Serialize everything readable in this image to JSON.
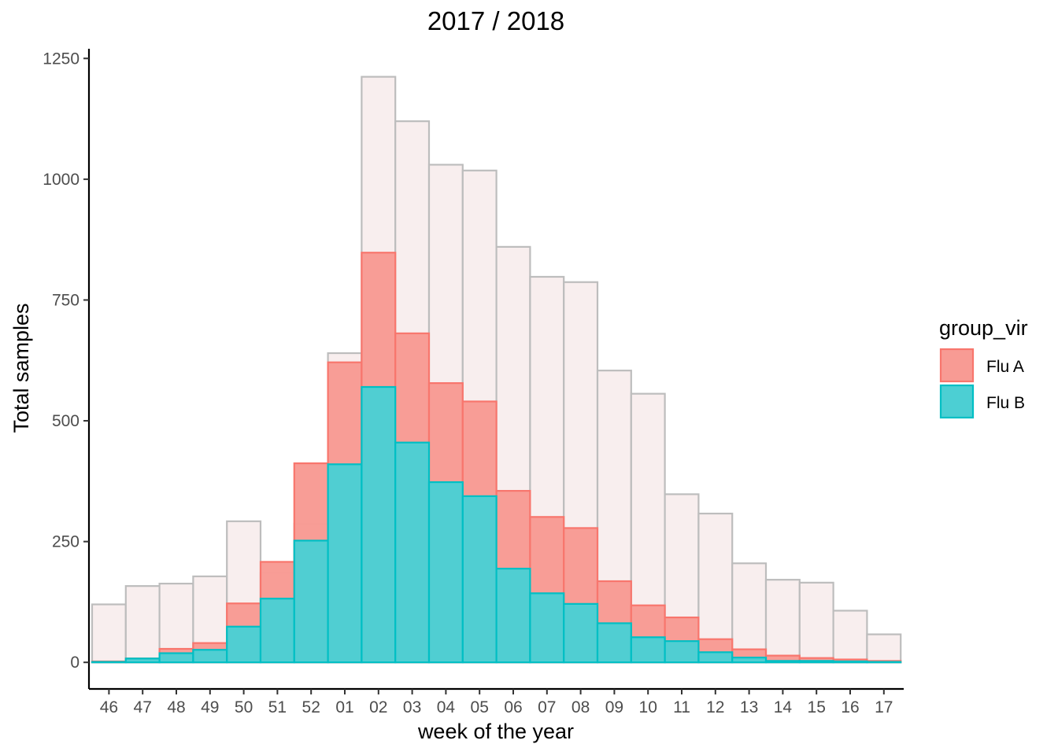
{
  "chart_data": {
    "type": "bar",
    "title": "2017 / 2018",
    "xlabel": "week of the year",
    "ylabel": "Total samples",
    "categories": [
      "46",
      "47",
      "48",
      "49",
      "50",
      "51",
      "52",
      "01",
      "02",
      "03",
      "04",
      "05",
      "06",
      "07",
      "08",
      "09",
      "10",
      "11",
      "12",
      "13",
      "14",
      "15",
      "16",
      "17"
    ],
    "ylim": [
      -55,
      1270
    ],
    "yticks": [
      0,
      250,
      500,
      750,
      1000,
      1250
    ],
    "grid": false,
    "bars_overlap": true,
    "series": [
      {
        "name": "",
        "role": "total",
        "fill": "#f8eeee",
        "stroke": "#bdbdbd",
        "values": [
          120,
          158,
          163,
          178,
          292,
          185,
          287,
          640,
          1212,
          1120,
          1030,
          1018,
          860,
          798,
          787,
          604,
          556,
          348,
          308,
          205,
          171,
          165,
          107,
          58
        ]
      },
      {
        "name": "Flu A",
        "role": "flu_a",
        "fill": "#f89b94",
        "stroke": "#f8766d",
        "values": [
          2,
          8,
          28,
          40,
          122,
          208,
          412,
          621,
          848,
          681,
          578,
          540,
          355,
          301,
          278,
          168,
          118,
          93,
          48,
          27,
          14,
          9,
          6,
          3
        ]
      },
      {
        "name": "Flu B",
        "role": "flu_b",
        "fill": "#4ccfd3",
        "stroke": "#00bfc4",
        "values": [
          1,
          8,
          19,
          26,
          74,
          132,
          252,
          410,
          570,
          455,
          373,
          344,
          194,
          143,
          121,
          81,
          52,
          44,
          21,
          10,
          3,
          3,
          2,
          1
        ]
      }
    ],
    "legend": {
      "title": "group_vir",
      "position": "right",
      "entries": [
        "Flu A",
        "Flu B"
      ]
    }
  }
}
